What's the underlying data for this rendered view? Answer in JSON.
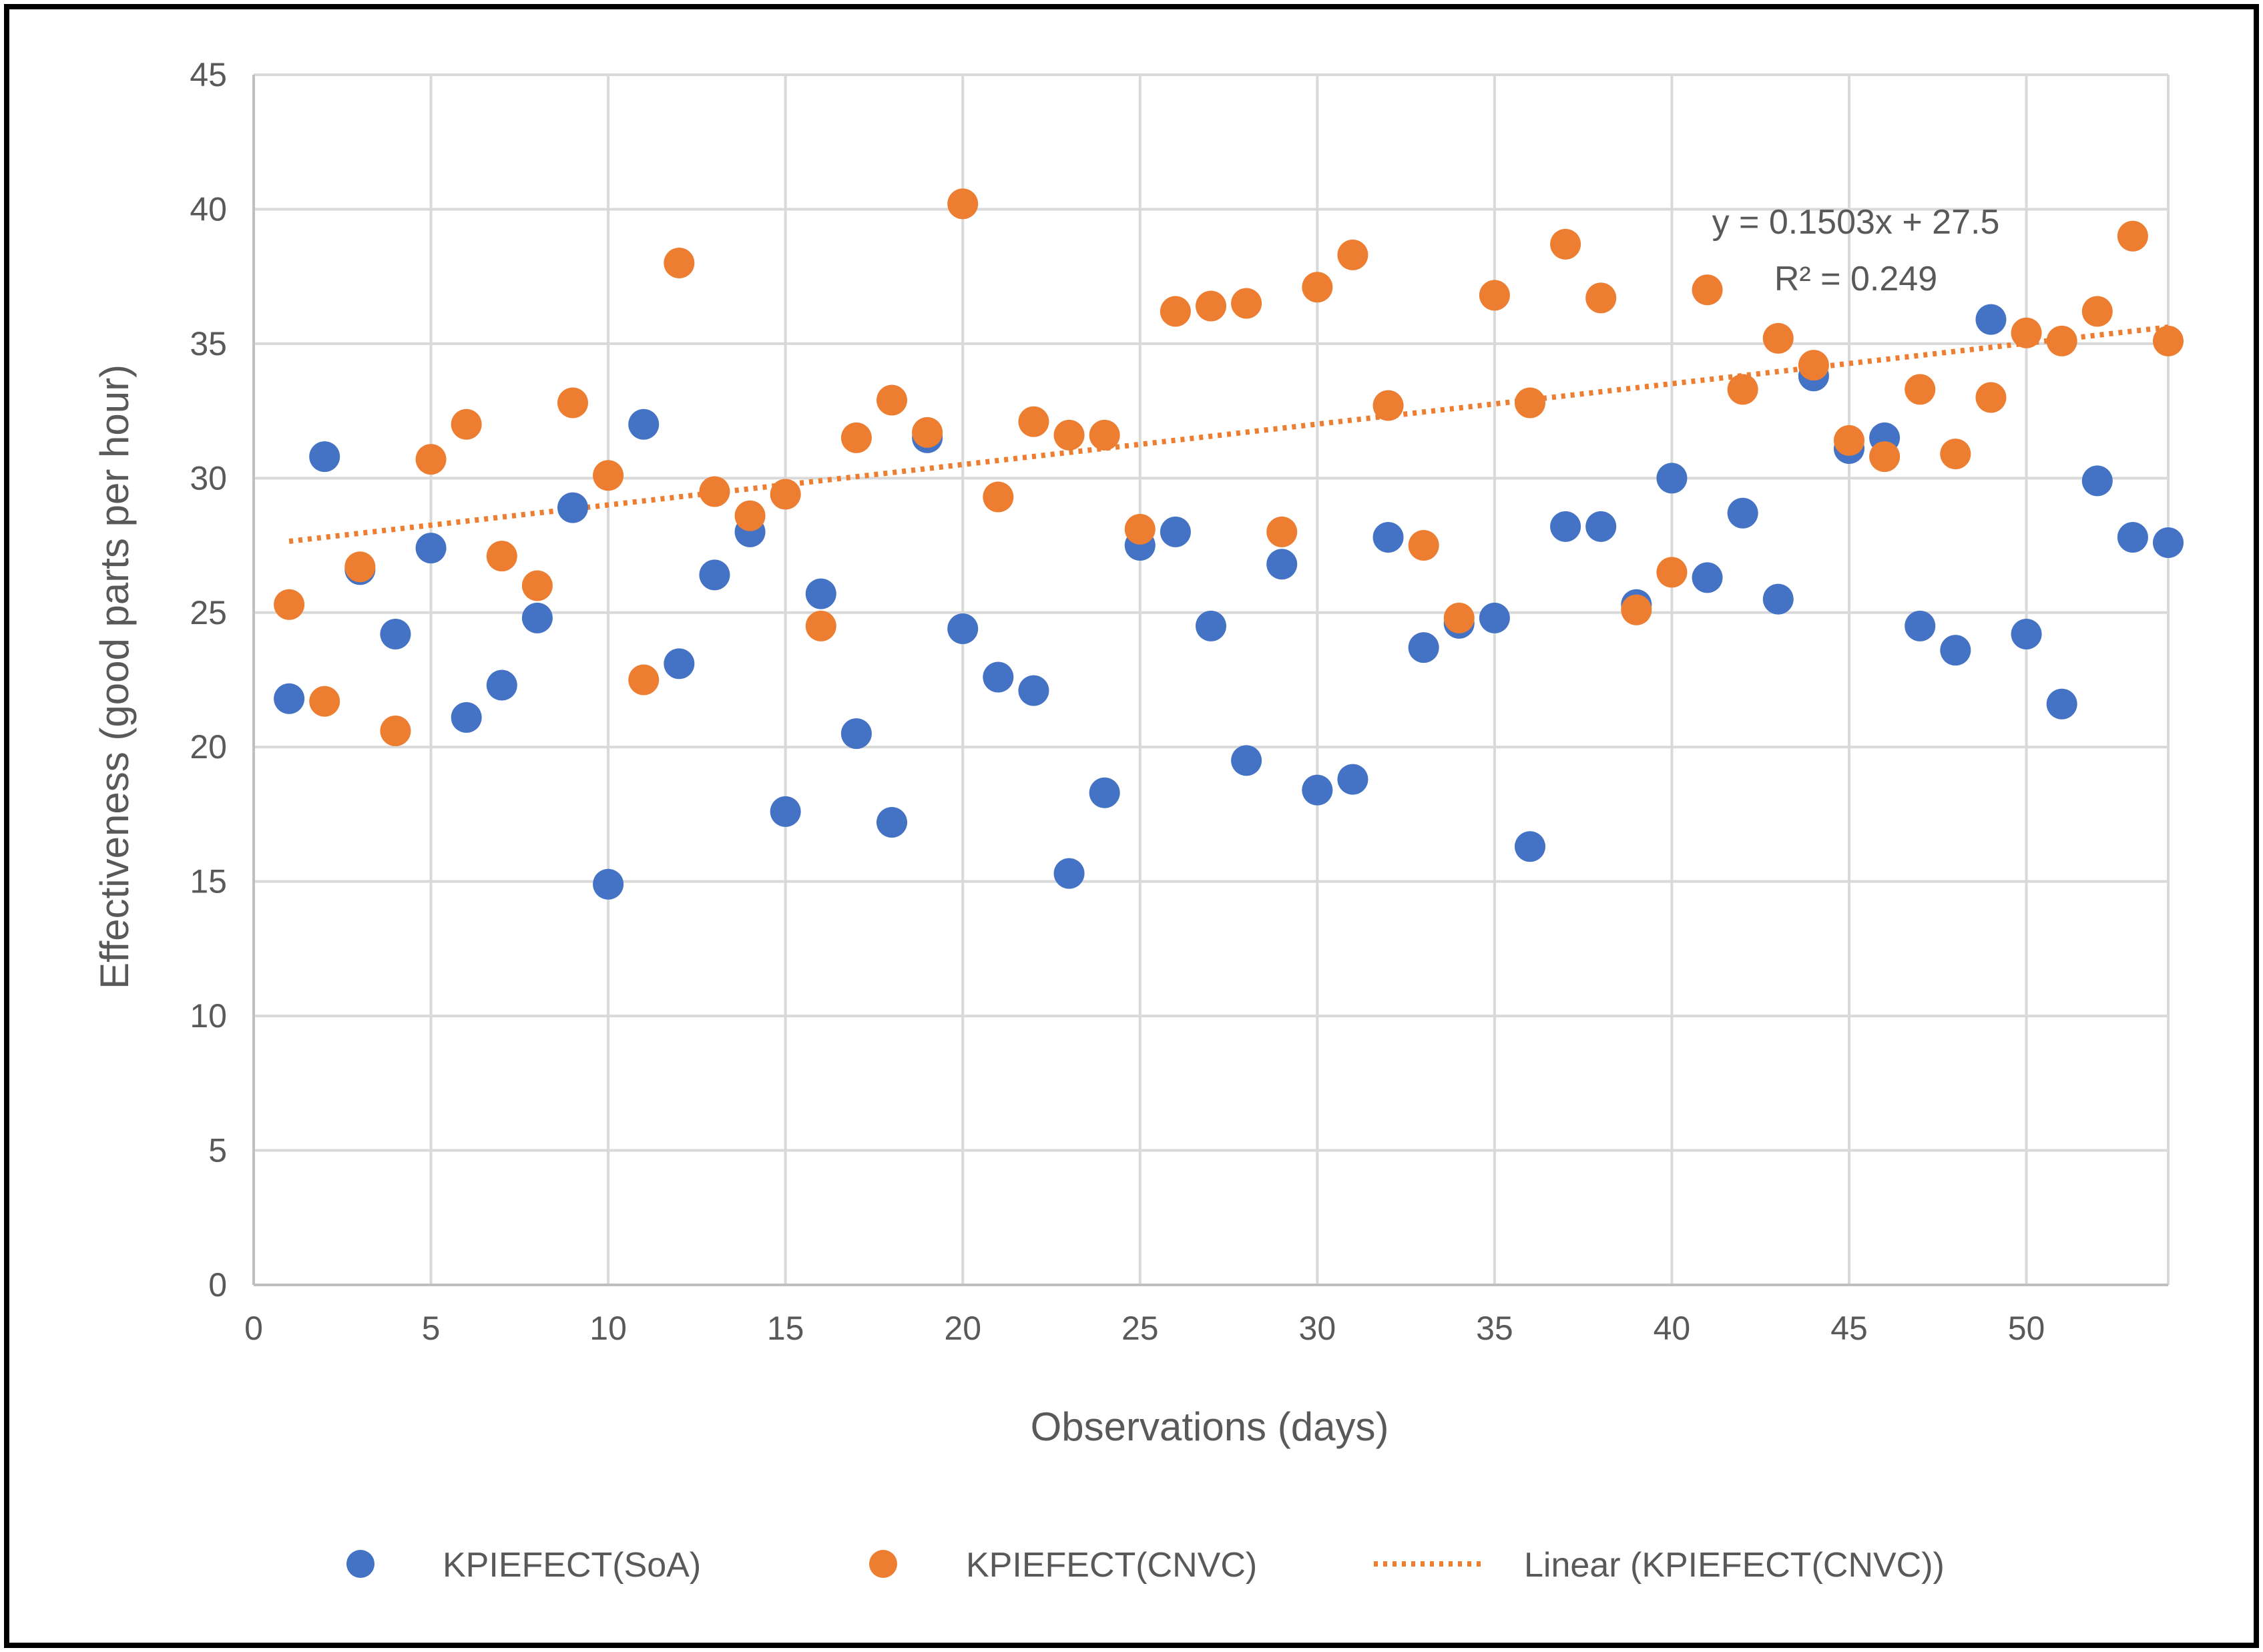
{
  "chart_data": {
    "type": "scatter",
    "xlabel": "Observations (days)",
    "ylabel": "Effectiveness (good parts per hour)",
    "xlim": [
      0,
      54
    ],
    "ylim": [
      0,
      45
    ],
    "xticks": [
      0,
      5,
      10,
      15,
      20,
      25,
      30,
      35,
      40,
      45,
      50
    ],
    "yticks": [
      0,
      5,
      10,
      15,
      20,
      25,
      30,
      35,
      40,
      45
    ],
    "grid": true,
    "legend_position": "bottom",
    "series": [
      {
        "name": "KPIEFECT(SoA)",
        "color": "#4472C4",
        "x": [
          1,
          2,
          3,
          4,
          5,
          6,
          7,
          8,
          9,
          10,
          11,
          12,
          13,
          14,
          15,
          16,
          17,
          18,
          19,
          20,
          21,
          22,
          23,
          24,
          25,
          26,
          27,
          28,
          29,
          30,
          31,
          32,
          33,
          34,
          35,
          36,
          37,
          38,
          39,
          40,
          41,
          42,
          43,
          44,
          45,
          46,
          47,
          48,
          49,
          50,
          51,
          52,
          53,
          54
        ],
        "y": [
          21.8,
          30.8,
          26.6,
          24.2,
          27.4,
          21.1,
          22.3,
          24.8,
          28.9,
          14.9,
          32.0,
          23.1,
          26.4,
          28.0,
          17.6,
          25.7,
          20.5,
          17.2,
          31.5,
          24.4,
          22.6,
          22.1,
          15.3,
          18.3,
          27.5,
          28.0,
          24.5,
          19.5,
          26.8,
          18.4,
          18.8,
          27.8,
          23.7,
          24.6,
          24.8,
          16.3,
          28.2,
          28.2,
          25.3,
          30.0,
          26.3,
          28.7,
          25.5,
          33.8,
          31.1,
          31.5,
          24.5,
          23.6,
          35.9,
          24.2,
          21.6,
          29.9,
          27.8,
          27.6
        ]
      },
      {
        "name": "KPIEFECT(CNVC)",
        "color": "#ED7D31",
        "x": [
          1,
          2,
          3,
          4,
          5,
          6,
          7,
          8,
          9,
          10,
          11,
          12,
          13,
          14,
          15,
          16,
          17,
          18,
          19,
          20,
          21,
          22,
          23,
          24,
          25,
          26,
          27,
          28,
          29,
          30,
          31,
          32,
          33,
          34,
          35,
          36,
          37,
          38,
          39,
          40,
          41,
          42,
          43,
          44,
          45,
          46,
          47,
          48,
          49,
          50,
          51,
          52,
          53,
          54
        ],
        "y": [
          25.3,
          21.7,
          26.7,
          20.6,
          30.7,
          32.0,
          27.1,
          26.0,
          32.8,
          30.1,
          22.5,
          38.0,
          29.5,
          28.6,
          29.4,
          24.5,
          31.5,
          32.9,
          31.7,
          40.2,
          29.3,
          32.1,
          31.6,
          31.6,
          28.1,
          36.2,
          36.4,
          36.5,
          28.0,
          37.1,
          38.3,
          32.7,
          27.5,
          24.8,
          36.8,
          32.8,
          38.7,
          36.7,
          25.1,
          26.5,
          37.0,
          33.3,
          35.2,
          34.2,
          31.4,
          30.8,
          33.3,
          30.9,
          33.0,
          35.4,
          35.1,
          36.2,
          39.0,
          35.1
        ]
      }
    ],
    "trendline": {
      "name": "Linear (KPIEFECT(CNVC))",
      "color": "#ED7D31",
      "slope": 0.1503,
      "intercept": 27.5,
      "x_range": [
        1,
        54
      ],
      "equation": "y = 0.1503x + 27.5",
      "r_squared": "R² = 0.249"
    }
  }
}
